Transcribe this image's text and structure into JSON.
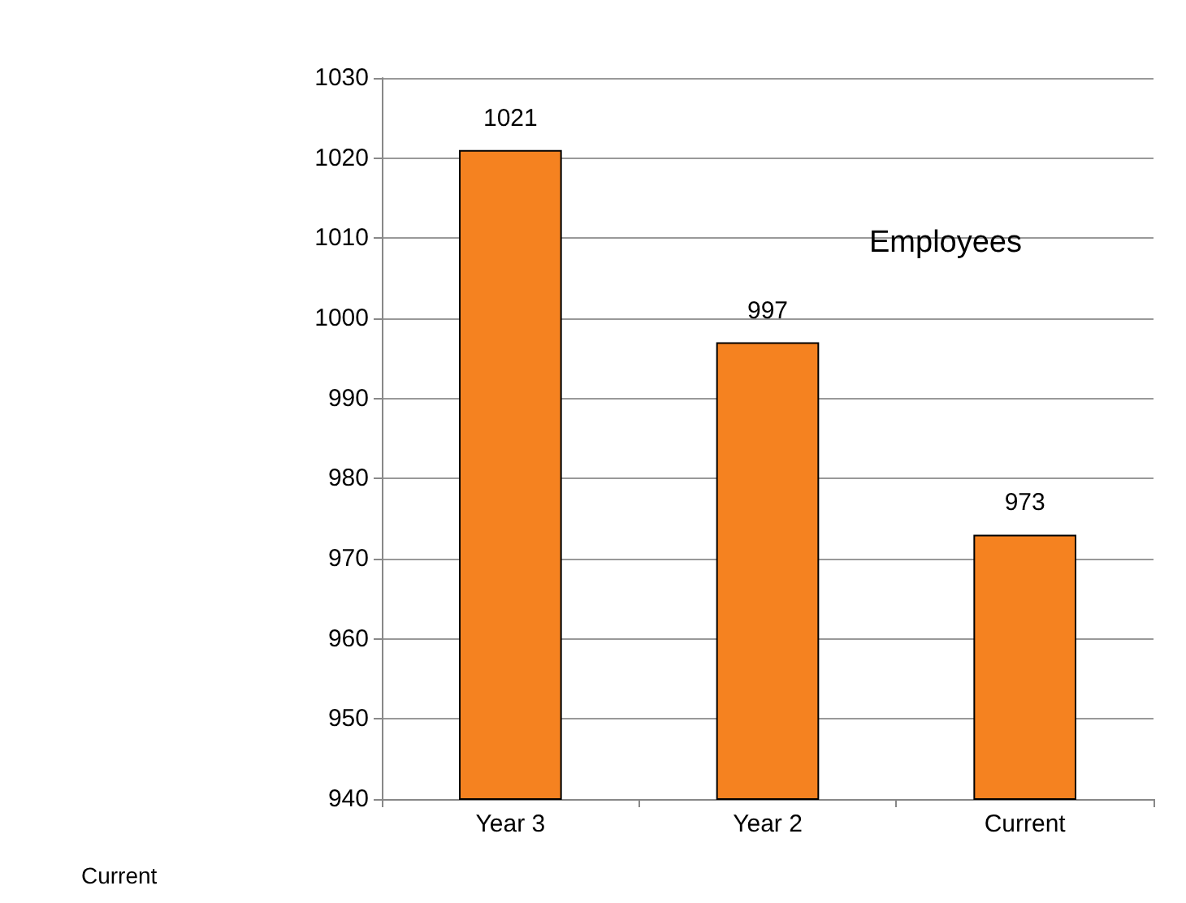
{
  "chart_data": {
    "type": "bar",
    "title": "Employees",
    "categories": [
      "Year 3",
      "Year 2",
      "Current"
    ],
    "values": [
      1021,
      997,
      973
    ],
    "color": "#f58220",
    "ylim": [
      940,
      1030
    ],
    "yticks": [
      940,
      950,
      960,
      970,
      980,
      990,
      1000,
      1010,
      1020,
      1030
    ],
    "grid": "y",
    "data_labels": true,
    "annotations": [
      "Current"
    ]
  }
}
